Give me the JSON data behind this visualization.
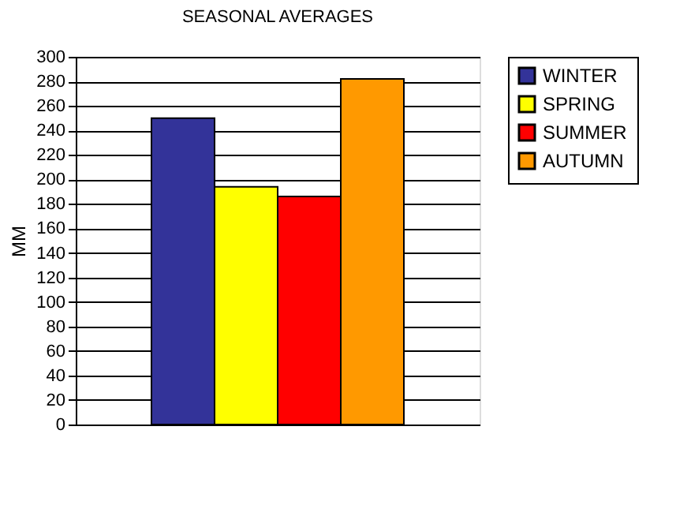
{
  "chart_data": {
    "type": "bar",
    "title": "SEASONAL AVERAGES",
    "ylabel": "MM",
    "categories": [
      null
    ],
    "series": [
      {
        "name": "WINTER",
        "color": "#333399",
        "values": [
          250
        ]
      },
      {
        "name": "SPRING",
        "color": "#ffff00",
        "values": [
          194
        ]
      },
      {
        "name": "SUMMER",
        "color": "#ff0000",
        "values": [
          186
        ]
      },
      {
        "name": "AUTUMN",
        "color": "#ff9900",
        "values": [
          282
        ]
      }
    ],
    "ylim": [
      0,
      300
    ],
    "yticks": [
      0,
      20,
      40,
      60,
      80,
      100,
      120,
      140,
      160,
      180,
      200,
      220,
      240,
      260,
      280,
      300
    ],
    "grid": "y",
    "legend": "right"
  }
}
